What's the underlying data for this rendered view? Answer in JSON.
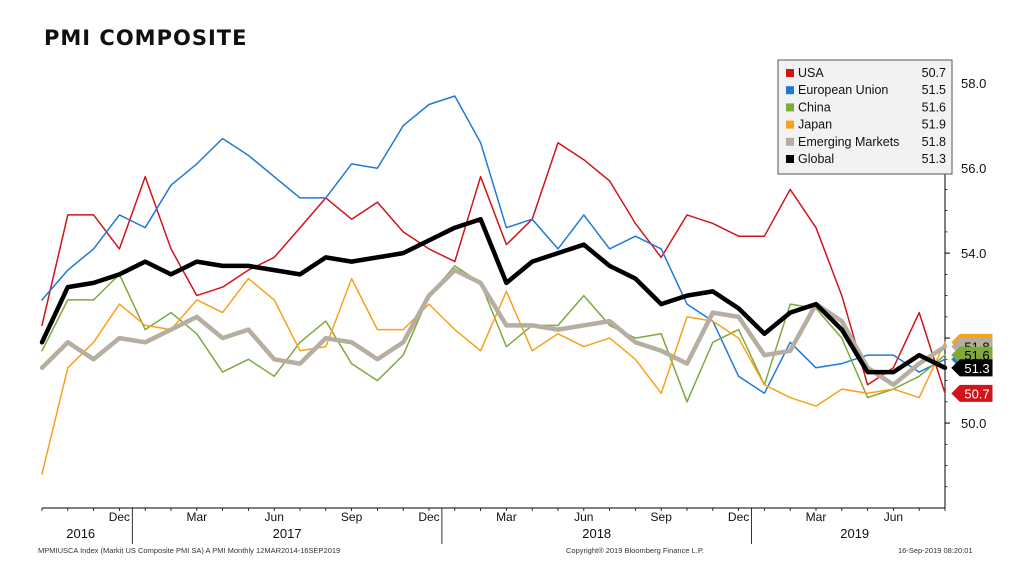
{
  "title": "PMI COMPOSITE",
  "footer": {
    "left": "MPMIUSCA Index (Markit US Composite PMI SA) A PMI  Monthly 12MAR2014-16SEP2019",
    "center": "Copyright® 2019 Bloomberg Finance L.P.",
    "right": "16-Sep-2019 08:20:01"
  },
  "chart_data": {
    "type": "line",
    "title": "PMI COMPOSITE",
    "x": [
      "2016-09",
      "2016-10",
      "2016-11",
      "2016-12",
      "2017-01",
      "2017-02",
      "2017-03",
      "2017-04",
      "2017-05",
      "2017-06",
      "2017-07",
      "2017-08",
      "2017-09",
      "2017-10",
      "2017-11",
      "2017-12",
      "2018-01",
      "2018-02",
      "2018-03",
      "2018-04",
      "2018-05",
      "2018-06",
      "2018-07",
      "2018-08",
      "2018-09",
      "2018-10",
      "2018-11",
      "2018-12",
      "2019-01",
      "2019-02",
      "2019-03",
      "2019-04",
      "2019-05",
      "2019-06",
      "2019-07",
      "2019-08"
    ],
    "x_tick_labels": [
      "Dec",
      "Mar",
      "Jun",
      "Sep",
      "Dec",
      "Mar",
      "Jun",
      "Sep",
      "Dec",
      "Mar",
      "Jun"
    ],
    "year_labels": [
      "2016",
      "2017",
      "2018",
      "2019"
    ],
    "ylim": [
      48.0,
      58.5
    ],
    "y_ticks": [
      50.0,
      52.0,
      54.0,
      56.0,
      58.0
    ],
    "y_tick_labels": [
      "50.0",
      "52.0",
      "54.0",
      "56.0",
      "58.0"
    ],
    "grid": false,
    "legend_position": "top-right",
    "series": [
      {
        "name": "USA",
        "color": "#d0141c",
        "last_label": "50.7",
        "line_width": 1.5,
        "values": [
          52.3,
          54.9,
          54.9,
          54.1,
          55.8,
          54.1,
          53.0,
          53.2,
          53.6,
          53.9,
          54.6,
          55.3,
          54.8,
          55.2,
          54.5,
          54.1,
          53.8,
          55.8,
          54.2,
          54.8,
          56.6,
          56.2,
          55.7,
          54.7,
          53.9,
          54.9,
          54.7,
          54.4,
          54.4,
          55.5,
          54.6,
          53.0,
          50.9,
          51.3,
          52.6,
          50.7
        ]
      },
      {
        "name": "European Union",
        "color": "#1f7ad6",
        "last_label": "51.5",
        "line_width": 1.5,
        "values": [
          52.9,
          53.6,
          54.1,
          54.9,
          54.6,
          55.6,
          56.1,
          56.7,
          56.3,
          55.8,
          55.3,
          55.3,
          56.1,
          56.0,
          57.0,
          57.5,
          57.7,
          56.6,
          54.6,
          54.8,
          54.1,
          54.9,
          54.1,
          54.4,
          54.1,
          52.8,
          52.4,
          51.1,
          50.7,
          51.9,
          51.3,
          51.4,
          51.6,
          51.6,
          51.2,
          51.5
        ]
      },
      {
        "name": "China",
        "color": "#7fa83e",
        "last_label": "51.6",
        "line_width": 1.5,
        "values": [
          51.7,
          52.9,
          52.9,
          53.5,
          52.2,
          52.6,
          52.1,
          51.2,
          51.5,
          51.1,
          51.9,
          52.4,
          51.4,
          51.0,
          51.6,
          53.0,
          53.7,
          53.3,
          51.8,
          52.3,
          52.3,
          53.0,
          52.3,
          52.0,
          52.1,
          50.5,
          51.9,
          52.2,
          50.9,
          52.8,
          52.7,
          52.0,
          50.6,
          50.8,
          51.1,
          51.6
        ]
      },
      {
        "name": "Japan",
        "color": "#f7a21a",
        "last_label": "51.9",
        "line_width": 1.5,
        "values": [
          48.8,
          51.3,
          51.9,
          52.8,
          52.3,
          52.2,
          52.9,
          52.6,
          53.4,
          52.9,
          51.7,
          51.8,
          53.4,
          52.2,
          52.2,
          52.8,
          52.2,
          51.7,
          53.1,
          51.7,
          52.1,
          51.8,
          52.0,
          51.5,
          50.7,
          52.5,
          52.4,
          52.0,
          50.9,
          50.6,
          50.4,
          50.8,
          50.7,
          50.8,
          50.6,
          51.9
        ]
      },
      {
        "name": "Emerging Markets",
        "color": "#b5aea1",
        "last_label": "51.8",
        "line_width": 4.5,
        "values": [
          51.3,
          51.9,
          51.5,
          52.0,
          51.9,
          52.2,
          52.5,
          52.0,
          52.2,
          51.5,
          51.4,
          52.0,
          51.9,
          51.5,
          51.9,
          53.0,
          53.6,
          53.3,
          52.3,
          52.3,
          52.2,
          52.3,
          52.4,
          51.9,
          51.7,
          51.4,
          52.6,
          52.5,
          51.6,
          51.7,
          52.8,
          52.4,
          51.3,
          50.9,
          51.4,
          51.8
        ]
      },
      {
        "name": "Global",
        "color": "#000000",
        "last_label": "51.3",
        "line_width": 4.5,
        "values": [
          51.9,
          53.2,
          53.3,
          53.5,
          53.8,
          53.5,
          53.8,
          53.7,
          53.7,
          53.6,
          53.5,
          53.9,
          53.8,
          53.9,
          54.0,
          54.3,
          54.6,
          54.8,
          53.3,
          53.8,
          54.0,
          54.2,
          53.7,
          53.4,
          52.8,
          53.0,
          53.1,
          52.7,
          52.1,
          52.6,
          52.8,
          52.2,
          51.2,
          51.2,
          51.6,
          51.3
        ]
      }
    ]
  }
}
